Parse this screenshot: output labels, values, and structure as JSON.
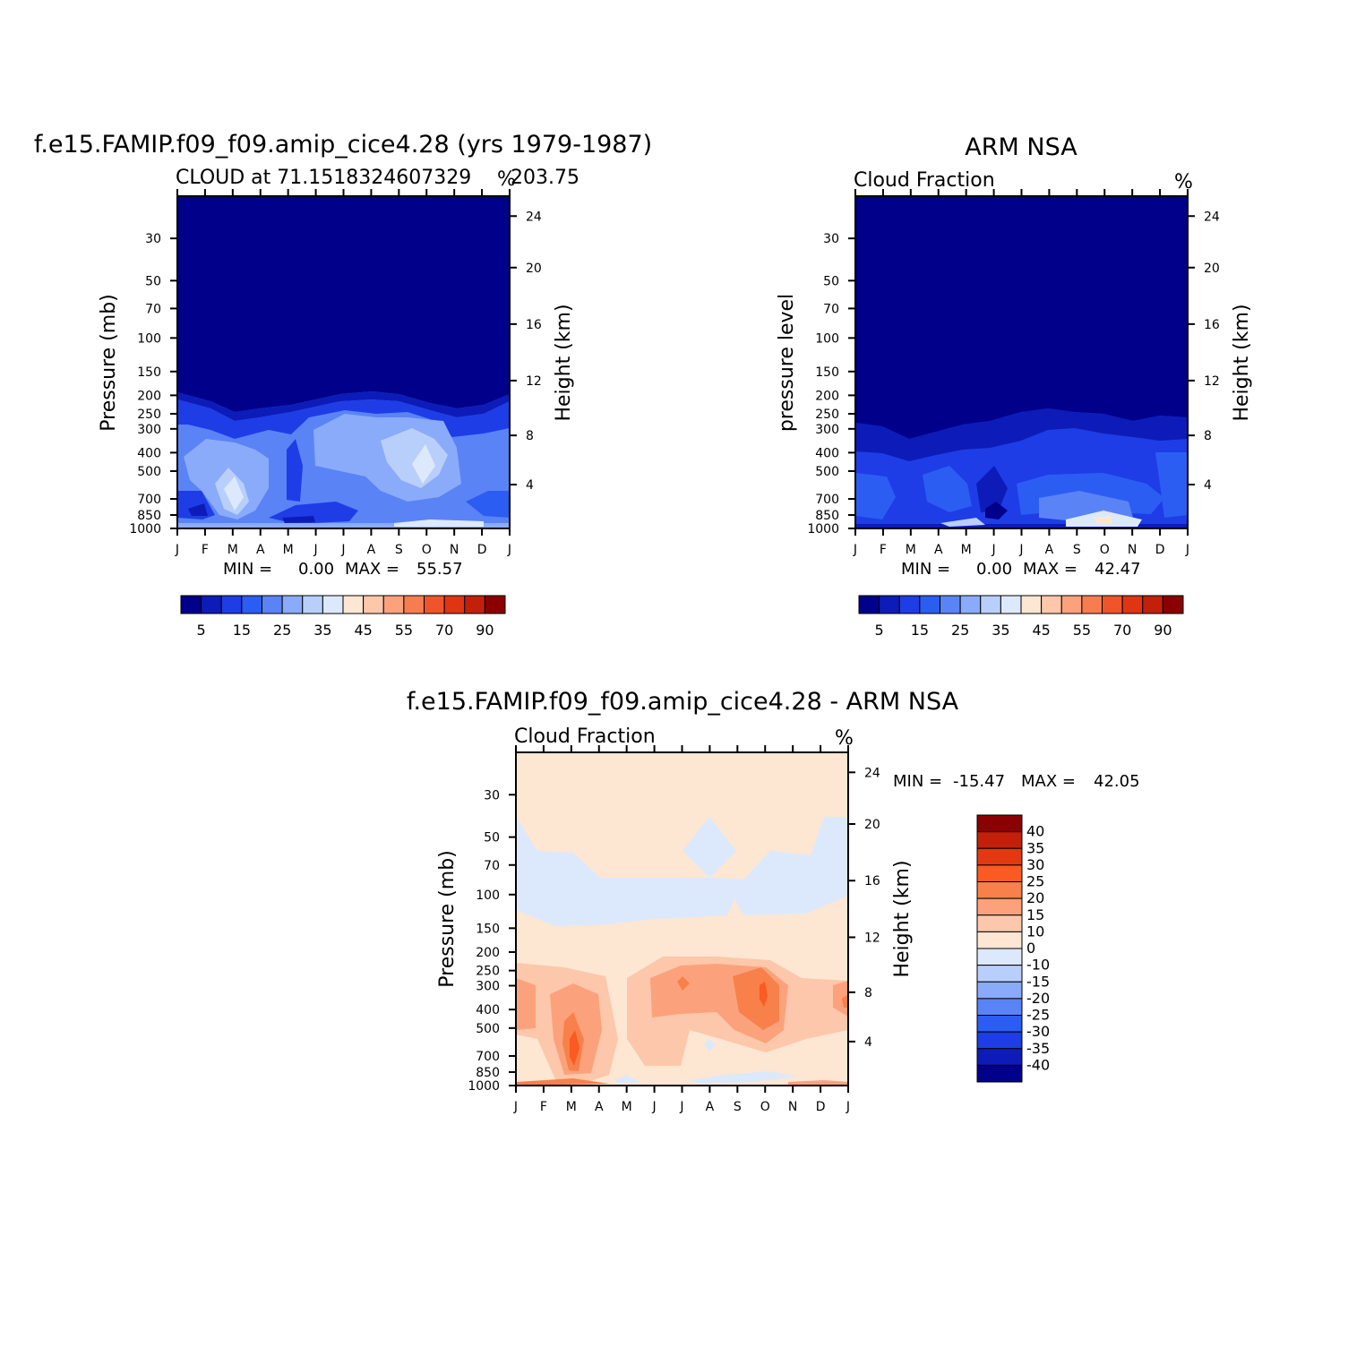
{
  "chart_data": [
    {
      "type": "heatmap",
      "title": "f.e15.FAMIP.f09_f09.amip_cice4.28 (yrs 1979-1987)",
      "subtitle_left": "CLOUD at 71.1518324607329",
      "subtitle_right": "203.75",
      "units": "%",
      "xlabel": "",
      "ylabel": "Pressure (mb)",
      "ylabel_right": "Height (km)",
      "x_ticks": [
        "J",
        "F",
        "M",
        "A",
        "M",
        "J",
        "J",
        "A",
        "S",
        "O",
        "N",
        "D",
        "J"
      ],
      "y_ticks": [
        "30",
        "50",
        "70",
        "100",
        "150",
        "200",
        "250",
        "300",
        "400",
        "500",
        "700",
        "850",
        "1000"
      ],
      "height_ticks": [
        "24",
        "20",
        "16",
        "12",
        "8",
        "4"
      ],
      "min_label": "MIN =",
      "min_value": "0.00",
      "max_label": "MAX =",
      "max_value": "55.57",
      "colorbar_labels": [
        "5",
        "15",
        "25",
        "35",
        "45",
        "55",
        "70",
        "90"
      ],
      "colorbar_colors": [
        "#00008b",
        "#0d1cb8",
        "#1e3de6",
        "#2c5df3",
        "#5a83f6",
        "#8aabf9",
        "#b9cffb",
        "#dce9fd",
        "#fde6d2",
        "#fcc7ab",
        "#fba27c",
        "#f77c50",
        "#f0542a",
        "#df3513",
        "#c2200b",
        "#8b0000"
      ],
      "grid": false
    },
    {
      "type": "heatmap",
      "title": "ARM NSA",
      "subtitle_left": "Cloud Fraction",
      "units": "%",
      "xlabel": "",
      "ylabel": "pressure level",
      "ylabel_right": "Height (km)",
      "x_ticks": [
        "J",
        "F",
        "M",
        "A",
        "M",
        "J",
        "J",
        "A",
        "S",
        "O",
        "N",
        "D",
        "J"
      ],
      "y_ticks": [
        "30",
        "50",
        "70",
        "100",
        "150",
        "200",
        "250",
        "300",
        "400",
        "500",
        "700",
        "850",
        "1000"
      ],
      "height_ticks": [
        "24",
        "20",
        "16",
        "12",
        "8",
        "4"
      ],
      "min_label": "MIN =",
      "min_value": "0.00",
      "max_label": "MAX =",
      "max_value": "42.47",
      "colorbar_labels": [
        "5",
        "15",
        "25",
        "35",
        "45",
        "55",
        "70",
        "90"
      ],
      "grid": false
    },
    {
      "type": "heatmap",
      "title": "f.e15.FAMIP.f09_f09.amip_cice4.28 - ARM NSA",
      "subtitle_left": "Cloud Fraction",
      "units": "%",
      "xlabel": "",
      "ylabel": "Pressure (mb)",
      "ylabel_right": "Height (km)",
      "x_ticks": [
        "J",
        "F",
        "M",
        "A",
        "M",
        "J",
        "J",
        "A",
        "S",
        "O",
        "N",
        "D",
        "J"
      ],
      "y_ticks": [
        "30",
        "50",
        "70",
        "100",
        "150",
        "200",
        "250",
        "300",
        "400",
        "500",
        "700",
        "850",
        "1000"
      ],
      "height_ticks": [
        "24",
        "20",
        "16",
        "12",
        "8",
        "4"
      ],
      "min_label": "MIN =",
      "min_value": "-15.47",
      "max_label": "MAX =",
      "max_value": "42.05",
      "colorbar_labels": [
        "40",
        "35",
        "30",
        "25",
        "20",
        "15",
        "10",
        "0",
        "-10",
        "-15",
        "-20",
        "-25",
        "-30",
        "-35",
        "-40"
      ],
      "colorbar_colors": [
        "#8b0000",
        "#c2200b",
        "#e23a10",
        "#fb5a22",
        "#f8804a",
        "#fba27c",
        "#fcc7ab",
        "#fde6d2",
        "#dce9fd",
        "#b9cffb",
        "#8aabf9",
        "#5a83f6",
        "#2c5df3",
        "#1e3de6",
        "#0d1cb8",
        "#00008b"
      ],
      "grid": false
    }
  ]
}
